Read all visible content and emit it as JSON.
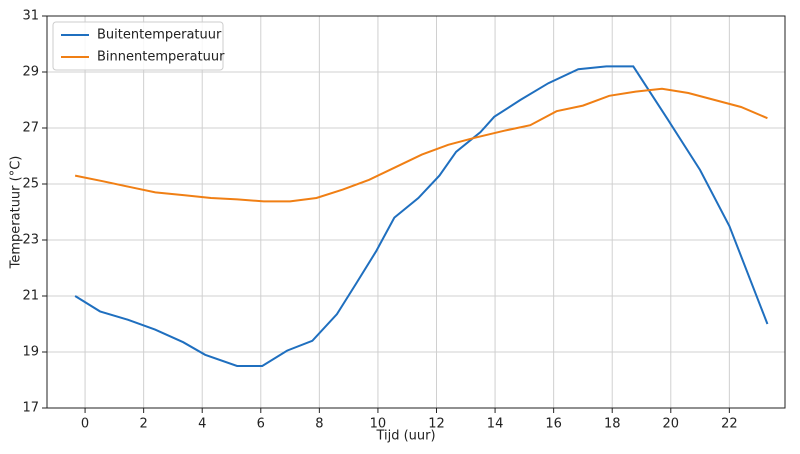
{
  "chart_data": {
    "type": "line",
    "xlabel": "Tijd (uur)",
    "ylabel": "Temperatuur (°C)",
    "xlim": [
      -1.3,
      23.9
    ],
    "ylim": [
      17,
      31
    ],
    "xticks": [
      0,
      2,
      4,
      6,
      8,
      10,
      12,
      14,
      16,
      18,
      20,
      22
    ],
    "yticks": [
      17,
      19,
      21,
      23,
      25,
      27,
      29,
      31
    ],
    "grid": true,
    "legend": "upper left",
    "series": [
      {
        "name": "Buitentemperatuur",
        "color": "#1f6fbf",
        "x": [
          -0.34,
          0.51,
          1.47,
          2.39,
          3.35,
          4.1,
          5.19,
          6.05,
          6.9,
          7.76,
          8.6,
          9.26,
          9.94,
          10.56,
          11.38,
          12.1,
          12.67,
          13.5,
          13.97,
          14.86,
          15.82,
          16.84,
          17.8,
          18.72,
          19.9,
          21.0,
          22.0,
          23.3
        ],
        "values": [
          21.0,
          20.45,
          20.15,
          19.8,
          19.35,
          18.9,
          18.5,
          18.5,
          19.05,
          19.4,
          20.35,
          21.45,
          22.6,
          23.8,
          24.5,
          25.3,
          26.15,
          26.85,
          27.4,
          28.0,
          28.6,
          29.1,
          29.2,
          29.2,
          27.3,
          25.5,
          23.5,
          20.0
        ]
      },
      {
        "name": "Binnentemperatuur",
        "color": "#f07f14",
        "x": [
          -0.34,
          0.6,
          1.5,
          2.4,
          3.4,
          4.3,
          5.2,
          6.1,
          7.0,
          7.9,
          8.8,
          9.7,
          10.6,
          11.5,
          12.4,
          13.3,
          14.3,
          15.2,
          16.1,
          17.0,
          17.9,
          18.8,
          19.7,
          20.6,
          21.5,
          22.4,
          23.3
        ],
        "values": [
          25.3,
          25.1,
          24.9,
          24.7,
          24.6,
          24.5,
          24.45,
          24.38,
          24.38,
          24.5,
          24.8,
          25.15,
          25.6,
          26.05,
          26.4,
          26.65,
          26.9,
          27.1,
          27.6,
          27.8,
          28.15,
          28.3,
          28.4,
          28.25,
          28.0,
          27.75,
          27.35
        ]
      }
    ]
  }
}
